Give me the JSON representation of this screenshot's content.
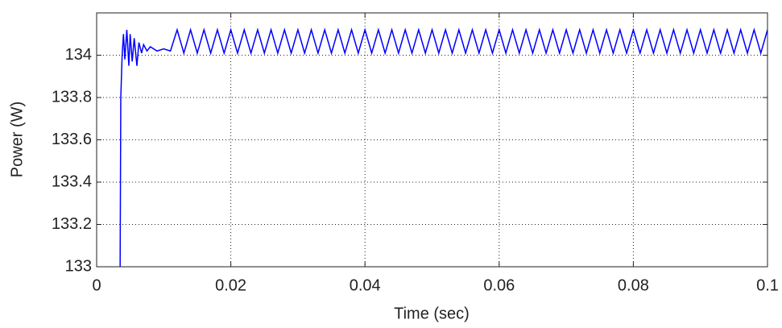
{
  "chart_data": {
    "type": "line",
    "x_label": "Time (sec)",
    "y_label": "Power (W)",
    "color": "#0000ff",
    "grid": true,
    "xlim": [
      0,
      0.1
    ],
    "xticks": [
      0,
      0.02,
      0.04,
      0.06,
      0.08,
      0.1
    ],
    "ylim": [
      133,
      134.2
    ],
    "yticks": [
      133,
      133.2,
      133.4,
      133.6,
      133.8,
      134
    ],
    "x": [
      0.0035,
      0.0036,
      0.0038,
      0.004,
      0.0042,
      0.0045,
      0.0048,
      0.005,
      0.0053,
      0.0056,
      0.006,
      0.0063,
      0.0067,
      0.007,
      0.0075,
      0.008,
      0.009,
      0.01,
      0.011,
      0.012,
      0.013,
      0.014,
      0.015,
      0.016,
      0.017,
      0.018,
      0.019,
      0.02,
      0.021,
      0.022,
      0.023,
      0.024,
      0.025,
      0.026,
      0.027,
      0.028,
      0.029,
      0.03,
      0.031,
      0.032,
      0.033,
      0.034,
      0.035,
      0.036,
      0.037,
      0.038,
      0.039,
      0.04,
      0.041,
      0.042,
      0.043,
      0.044,
      0.045,
      0.046,
      0.047,
      0.048,
      0.049,
      0.05,
      0.051,
      0.052,
      0.053,
      0.054,
      0.055,
      0.056,
      0.057,
      0.058,
      0.059,
      0.06,
      0.061,
      0.062,
      0.063,
      0.064,
      0.065,
      0.066,
      0.067,
      0.068,
      0.069,
      0.07,
      0.071,
      0.072,
      0.073,
      0.074,
      0.075,
      0.076,
      0.077,
      0.078,
      0.079,
      0.08,
      0.081,
      0.082,
      0.083,
      0.084,
      0.085,
      0.086,
      0.087,
      0.088,
      0.089,
      0.09,
      0.091,
      0.092,
      0.093,
      0.094,
      0.095,
      0.096,
      0.097,
      0.098,
      0.099,
      0.1
    ],
    "values": [
      133,
      133.8,
      134.0,
      134.1,
      133.98,
      134.12,
      133.95,
      134.1,
      133.97,
      134.08,
      133.95,
      134.06,
      134.01,
      134.05,
      134.02,
      134.04,
      134.02,
      134.03,
      134.02,
      134.12,
      134.01,
      134.12,
      134.01,
      134.12,
      134.01,
      134.12,
      134.01,
      134.12,
      134.01,
      134.12,
      134.01,
      134.12,
      134.01,
      134.12,
      134.01,
      134.12,
      134.01,
      134.12,
      134.01,
      134.12,
      134.01,
      134.12,
      134.01,
      134.12,
      134.01,
      134.12,
      134.01,
      134.12,
      134.01,
      134.12,
      134.01,
      134.12,
      134.01,
      134.12,
      134.01,
      134.12,
      134.01,
      134.12,
      134.01,
      134.12,
      134.01,
      134.12,
      134.01,
      134.12,
      134.01,
      134.12,
      134.01,
      134.12,
      134.01,
      134.12,
      134.01,
      134.12,
      134.01,
      134.12,
      134.01,
      134.12,
      134.01,
      134.12,
      134.01,
      134.12,
      134.01,
      134.12,
      134.01,
      134.12,
      134.01,
      134.12,
      134.01,
      134.12,
      134.01,
      134.12,
      134.01,
      134.12,
      134.01,
      134.12,
      134.01,
      134.12,
      134.01,
      134.12,
      134.01,
      134.12,
      134.01,
      134.12,
      134.01,
      134.12,
      134.01,
      134.12,
      134.01,
      134.12
    ]
  }
}
